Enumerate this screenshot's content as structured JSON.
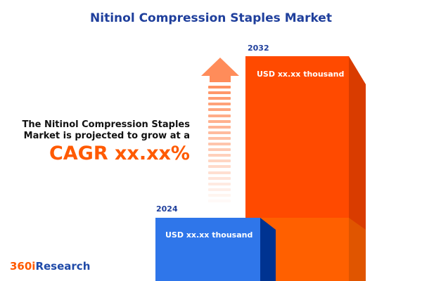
{
  "title": "Nitinol Compression Staples Market",
  "description": [
    "The Nitinol Compression Staples",
    "Market is projected to grow at a"
  ],
  "cagr": "CAGR xx.xx%",
  "bars": [
    {
      "year": "2024",
      "value": "USD xx.xx thousand",
      "color": "#2f76ea"
    },
    {
      "year": "2032",
      "value": "USD xx.xx thousand",
      "color": "#ff4a00"
    }
  ],
  "logo": {
    "part1": "360i",
    "part2": "Research"
  },
  "colors": {
    "accent": "#ff5a00",
    "brand_blue": "#1f3f9c"
  }
}
